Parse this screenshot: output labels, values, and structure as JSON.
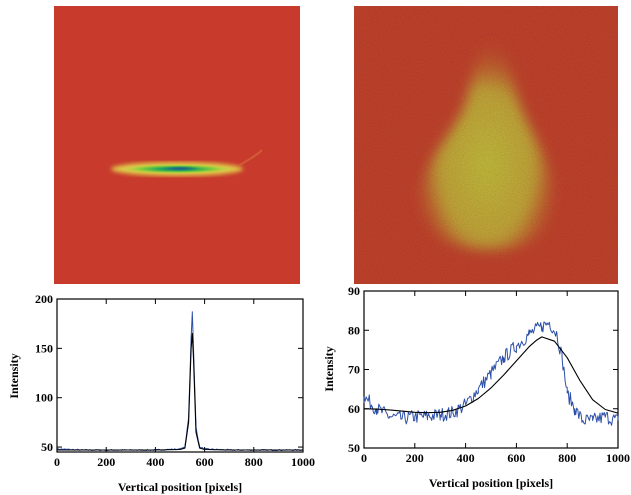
{
  "chart_data": [
    {
      "type": "line",
      "panel": "bottom-left",
      "xlabel": "Vertical position [pixels]",
      "ylabel": "Intensity",
      "xlim": [
        0,
        1000
      ],
      "ylim": [
        45,
        200
      ],
      "xticks": [
        0,
        200,
        400,
        600,
        800,
        1000
      ],
      "yticks": [
        50,
        100,
        150,
        200
      ],
      "grid": false,
      "series": [
        {
          "style": "noisy-data",
          "color": "#2c4fa8",
          "x": [
            0,
            100,
            200,
            300,
            400,
            500,
            520,
            535,
            545,
            550,
            555,
            565,
            580,
            600,
            700,
            800,
            900,
            1000
          ],
          "y": [
            48,
            47,
            47,
            47,
            47,
            48,
            50,
            80,
            160,
            187,
            150,
            70,
            50,
            48,
            47,
            47,
            47,
            47
          ]
        },
        {
          "style": "fit",
          "color": "#000000",
          "x": [
            0,
            100,
            200,
            300,
            400,
            500,
            520,
            535,
            545,
            550,
            555,
            565,
            580,
            600,
            700,
            800,
            900,
            1000
          ],
          "y": [
            47,
            47,
            47,
            47,
            47,
            47.5,
            49,
            75,
            150,
            165,
            140,
            65,
            49,
            47.5,
            47,
            47,
            47,
            47
          ]
        }
      ]
    },
    {
      "type": "line",
      "panel": "bottom-right",
      "xlabel": "Vertical position [pixels]",
      "ylabel": "Intensity",
      "xlim": [
        0,
        1000
      ],
      "ylim": [
        50,
        90
      ],
      "xticks": [
        0,
        200,
        400,
        600,
        800,
        1000
      ],
      "yticks": [
        50,
        60,
        70,
        80,
        90
      ],
      "grid": false,
      "series": [
        {
          "style": "noisy-data",
          "color": "#2c4fa8",
          "x": [
            0,
            50,
            100,
            150,
            200,
            250,
            300,
            350,
            400,
            450,
            500,
            550,
            600,
            650,
            700,
            730,
            760,
            780,
            800,
            830,
            860,
            900,
            950,
            1000
          ],
          "y": [
            63,
            60,
            58,
            57.5,
            58,
            58,
            58.5,
            59,
            61,
            65,
            69,
            73,
            76,
            79,
            81,
            82,
            79,
            73,
            64,
            60,
            57,
            57,
            58,
            57
          ]
        },
        {
          "style": "fit",
          "color": "#000000",
          "x": [
            0,
            50,
            100,
            150,
            200,
            250,
            300,
            350,
            400,
            450,
            500,
            550,
            600,
            650,
            680,
            700,
            750,
            800,
            850,
            900,
            950,
            1000
          ],
          "y": [
            60,
            59.9,
            59.7,
            59.4,
            59.1,
            59.0,
            59.1,
            59.6,
            60.7,
            62.6,
            65.3,
            68.6,
            72.2,
            75.8,
            77.5,
            78.3,
            77.2,
            73.0,
            67.2,
            62.3,
            59.8,
            58.9
          ]
        }
      ]
    }
  ]
}
